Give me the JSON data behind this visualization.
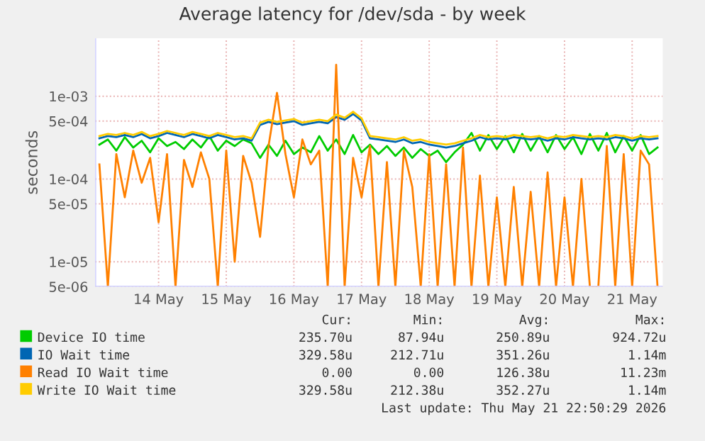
{
  "chart_data": {
    "type": "line",
    "title": "Average latency for /dev/sda - by week",
    "ylabel": "seconds",
    "log": "y",
    "grid": true,
    "legend": "bottom",
    "xlim": [
      "2026-05-13T13:30",
      "2026-05-21T22:50"
    ],
    "xticks": [
      {
        "value": "2026-05-14T12:00",
        "label": "14 May"
      },
      {
        "value": "2026-05-15T12:00",
        "label": "15 May"
      },
      {
        "value": "2026-05-16T12:00",
        "label": "16 May"
      },
      {
        "value": "2026-05-17T12:00",
        "label": "17 May"
      },
      {
        "value": "2026-05-18T12:00",
        "label": "18 May"
      },
      {
        "value": "2026-05-19T12:00",
        "label": "19 May"
      },
      {
        "value": "2026-05-20T12:00",
        "label": "20 May"
      },
      {
        "value": "2026-05-21T12:00",
        "label": "21 May"
      }
    ],
    "ylim": [
      5e-06,
      0.005
    ],
    "yticks": [
      {
        "value": 5e-06,
        "label": "5e-06"
      },
      {
        "value": 1e-05,
        "label": "1e-05"
      },
      {
        "value": 5e-05,
        "label": "5e-05"
      },
      {
        "value": 0.0001,
        "label": "1e-04"
      },
      {
        "value": 0.0005,
        "label": "5e-04"
      },
      {
        "value": 0.001,
        "label": "1e-03"
      }
    ],
    "x": [
      "2026-05-13T15:00",
      "2026-05-13T18:00",
      "2026-05-13T21:00",
      "2026-05-14T00:00",
      "2026-05-14T03:00",
      "2026-05-14T06:00",
      "2026-05-14T09:00",
      "2026-05-14T12:00",
      "2026-05-14T15:00",
      "2026-05-14T18:00",
      "2026-05-14T21:00",
      "2026-05-15T00:00",
      "2026-05-15T03:00",
      "2026-05-15T06:00",
      "2026-05-15T09:00",
      "2026-05-15T12:00",
      "2026-05-15T15:00",
      "2026-05-15T18:00",
      "2026-05-15T21:00",
      "2026-05-16T00:00",
      "2026-05-16T03:00",
      "2026-05-16T06:00",
      "2026-05-16T09:00",
      "2026-05-16T12:00",
      "2026-05-16T15:00",
      "2026-05-16T18:00",
      "2026-05-16T21:00",
      "2026-05-17T00:00",
      "2026-05-17T03:00",
      "2026-05-17T06:00",
      "2026-05-17T09:00",
      "2026-05-17T12:00",
      "2026-05-17T15:00",
      "2026-05-17T18:00",
      "2026-05-17T21:00",
      "2026-05-18T00:00",
      "2026-05-18T03:00",
      "2026-05-18T06:00",
      "2026-05-18T09:00",
      "2026-05-18T12:00",
      "2026-05-18T15:00",
      "2026-05-18T18:00",
      "2026-05-18T21:00",
      "2026-05-19T00:00",
      "2026-05-19T03:00",
      "2026-05-19T06:00",
      "2026-05-19T09:00",
      "2026-05-19T12:00",
      "2026-05-19T15:00",
      "2026-05-19T18:00",
      "2026-05-19T21:00",
      "2026-05-20T00:00",
      "2026-05-20T03:00",
      "2026-05-20T06:00",
      "2026-05-20T09:00",
      "2026-05-20T12:00",
      "2026-05-20T15:00",
      "2026-05-20T18:00",
      "2026-05-20T21:00",
      "2026-05-21T00:00",
      "2026-05-21T03:00",
      "2026-05-21T06:00",
      "2026-05-21T09:00",
      "2026-05-21T12:00",
      "2026-05-21T15:00",
      "2026-05-21T18:00",
      "2026-05-21T21:00"
    ],
    "series": [
      {
        "name": "Device IO time",
        "color": "#00cc00",
        "values": [
          0.00026,
          0.0003,
          0.00022,
          0.00032,
          0.00024,
          0.00029,
          0.00021,
          0.00031,
          0.00025,
          0.00028,
          0.00023,
          0.0003,
          0.00024,
          0.00033,
          0.00022,
          0.00029,
          0.00025,
          0.0003,
          0.00027,
          0.00018,
          0.00026,
          0.00019,
          0.00029,
          0.0002,
          0.00024,
          0.00021,
          0.00033,
          0.00022,
          0.0003,
          0.0002,
          0.00034,
          0.00021,
          0.00026,
          0.0002,
          0.00025,
          0.00019,
          0.00024,
          0.00018,
          0.00023,
          0.00019,
          0.00022,
          0.00016,
          0.00021,
          0.00026,
          0.00036,
          0.00022,
          0.00034,
          0.00023,
          0.00033,
          0.00021,
          0.00035,
          0.00022,
          0.00033,
          0.00021,
          0.00034,
          0.00023,
          0.00032,
          0.0002,
          0.00035,
          0.00022,
          0.00036,
          0.00021,
          0.00033,
          0.00022,
          0.00034,
          0.0002,
          0.00024
        ]
      },
      {
        "name": "IO Wait time",
        "color": "#0066b3",
        "values": [
          0.00031,
          0.00033,
          0.00032,
          0.00034,
          0.00032,
          0.00035,
          0.00031,
          0.00033,
          0.00036,
          0.00034,
          0.00032,
          0.00035,
          0.00033,
          0.00031,
          0.00034,
          0.00032,
          0.0003,
          0.00031,
          0.00029,
          0.00045,
          0.00049,
          0.00046,
          0.00048,
          0.0005,
          0.00045,
          0.00047,
          0.00049,
          0.00047,
          0.00056,
          0.00052,
          0.00061,
          0.00051,
          0.00031,
          0.0003,
          0.00029,
          0.00028,
          0.0003,
          0.00027,
          0.00028,
          0.00026,
          0.00025,
          0.00024,
          0.00025,
          0.00027,
          0.00029,
          0.00032,
          0.0003,
          0.00031,
          0.0003,
          0.00032,
          0.00031,
          0.0003,
          0.00031,
          0.00029,
          0.00031,
          0.0003,
          0.00032,
          0.00031,
          0.0003,
          0.00031,
          0.0003,
          0.00032,
          0.00031,
          0.00029,
          0.00031,
          0.0003,
          0.00031
        ]
      },
      {
        "name": "Read IO Wait time",
        "color": "#ff8000",
        "values": [
          0.00015,
          5e-06,
          0.0002,
          6e-05,
          0.00022,
          9e-05,
          0.00018,
          3e-05,
          0.0002,
          5e-06,
          0.00017,
          8e-05,
          0.00021,
          0.0001,
          5e-06,
          0.00022,
          1e-05,
          0.00019,
          9e-05,
          2e-05,
          0.00025,
          0.0011,
          0.0002,
          6e-05,
          0.0003,
          0.00015,
          0.00022,
          5e-06,
          0.0024,
          5e-06,
          0.00018,
          6e-05,
          0.00025,
          5e-06,
          0.00016,
          5e-06,
          0.00022,
          8e-05,
          5e-06,
          0.0002,
          5e-06,
          0.00015,
          5e-06,
          0.00024,
          5e-06,
          0.00011,
          5e-06,
          6e-05,
          5e-06,
          8e-05,
          5e-06,
          7e-05,
          5e-06,
          0.00012,
          5e-06,
          6e-05,
          5e-06,
          0.0001,
          5e-06,
          5e-06,
          0.00025,
          5e-06,
          0.0002,
          5e-06,
          0.00022,
          0.00015,
          5e-06
        ]
      },
      {
        "name": "Write IO Wait time",
        "color": "#ffcc00",
        "values": [
          0.00033,
          0.00035,
          0.00034,
          0.00036,
          0.00034,
          0.00037,
          0.00033,
          0.00035,
          0.00038,
          0.00036,
          0.00034,
          0.00037,
          0.00035,
          0.00033,
          0.00036,
          0.00034,
          0.00032,
          0.00033,
          0.00031,
          0.00048,
          0.00052,
          0.00049,
          0.00051,
          0.00053,
          0.00048,
          0.0005,
          0.00052,
          0.0005,
          0.0006,
          0.00055,
          0.00065,
          0.00054,
          0.00033,
          0.00032,
          0.00031,
          0.0003,
          0.00032,
          0.00029,
          0.0003,
          0.00028,
          0.00027,
          0.00026,
          0.00027,
          0.00029,
          0.00031,
          0.00034,
          0.00032,
          0.00033,
          0.00032,
          0.00034,
          0.00033,
          0.00032,
          0.00033,
          0.00031,
          0.00033,
          0.00032,
          0.00034,
          0.00033,
          0.00032,
          0.00033,
          0.00032,
          0.00034,
          0.00033,
          0.00031,
          0.00033,
          0.00032,
          0.00033
        ]
      }
    ],
    "annotations": [
      "Cur:",
      "Min:",
      "Avg:",
      "Max:",
      "235.70u",
      "87.94u",
      "250.89u",
      "924.72u",
      "329.58u",
      "212.71u",
      "351.26u",
      "1.14m",
      "0.00",
      "0.00",
      "126.38u",
      "11.23m",
      "329.58u",
      "212.38u",
      "352.27u",
      "1.14m",
      "Last update: Thu May 21 22:50:29 2026"
    ]
  }
}
